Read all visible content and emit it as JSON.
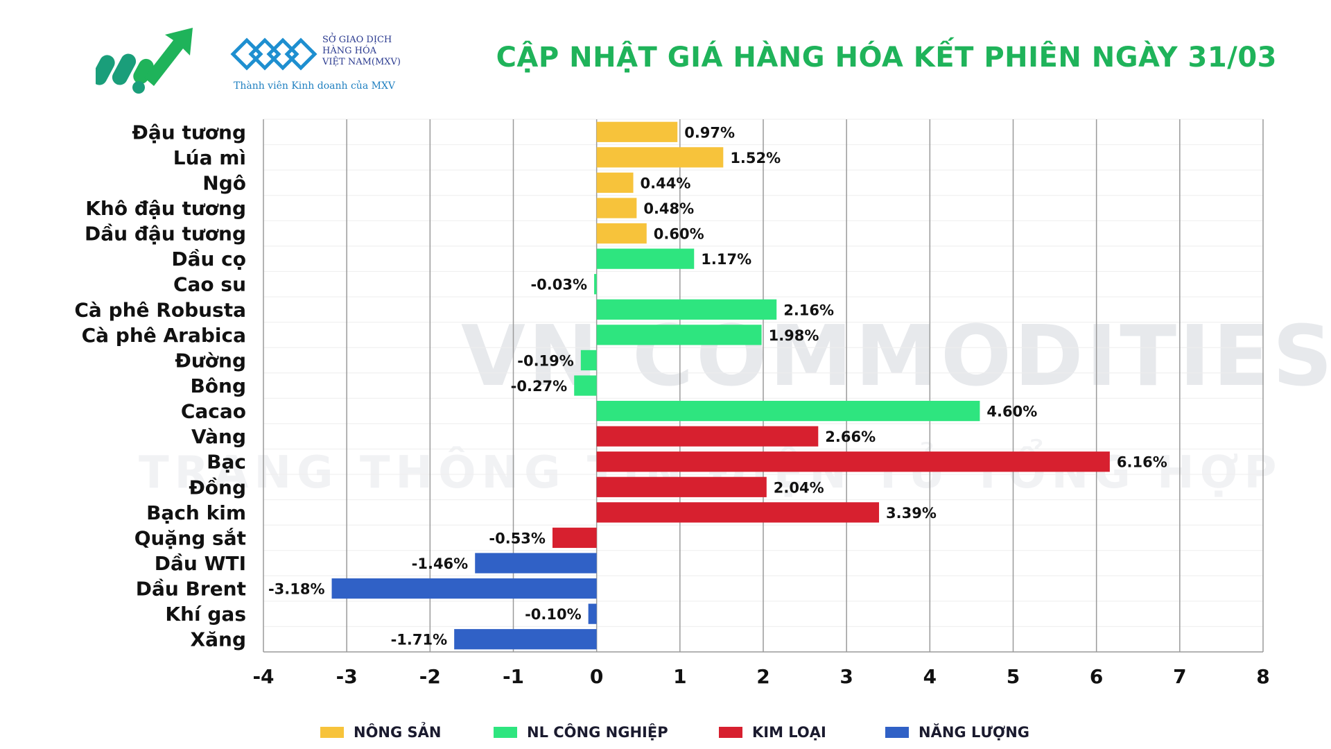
{
  "header": {
    "title": "CẬP NHẬT GIÁ HÀNG HÓA KẾT PHIÊN NGÀY 31/03",
    "mxv_lines": [
      "SỞ GIAO DỊCH",
      "HÀNG HÓA",
      "VIỆT NAM(MXV)"
    ],
    "mxv_member": "Thành viên Kinh doanh của MXV",
    "title_color": "#1fb35a"
  },
  "watermark": {
    "main": "VN COMMODITIES",
    "sub": "TRANG THÔNG TIN ĐIỆN TỬ TỔNG HỢP"
  },
  "colors": {
    "nong_san": "#f7c33b",
    "nl_cong_nghiep": "#2ee57f",
    "kim_loai": "#d7202f",
    "nang_luong": "#3061c6"
  },
  "legend": [
    {
      "key": "nong_san",
      "label": "NÔNG SẢN"
    },
    {
      "key": "nl_cong_nghiep",
      "label": "NL CÔNG NGHIỆP"
    },
    {
      "key": "kim_loai",
      "label": "KIM LOẠI"
    },
    {
      "key": "nang_luong",
      "label": "NĂNG LƯỢNG"
    }
  ],
  "chart_data": {
    "type": "bar",
    "orientation": "horizontal",
    "title": "CẬP NHẬT GIÁ HÀNG HÓA KẾT PHIÊN NGÀY 31/03",
    "xlim": [
      -4,
      8
    ],
    "xticks": [
      -4,
      -3,
      -2,
      -1,
      0,
      1,
      2,
      3,
      4,
      5,
      6,
      7,
      8
    ],
    "grid": "vertical",
    "legend_position": "bottom",
    "categories": [
      "Đậu tương",
      "Lúa mì",
      "Ngô",
      "Khô đậu tương",
      "Dầu đậu tương",
      "Dầu cọ",
      "Cao su",
      "Cà phê Robusta",
      "Cà phê Arabica",
      "Đường",
      "Bông",
      "Cacao",
      "Vàng",
      "Bạc",
      "Đồng",
      "Bạch kim",
      "Quặng sắt",
      "Dầu WTI",
      "Dầu Brent",
      "Khí gas",
      "Xăng"
    ],
    "values": [
      0.97,
      1.52,
      0.44,
      0.48,
      0.6,
      1.17,
      -0.03,
      2.16,
      1.98,
      -0.19,
      -0.27,
      4.6,
      2.66,
      6.16,
      2.04,
      3.39,
      -0.53,
      -1.46,
      -3.18,
      -0.1,
      -1.71
    ],
    "labels": [
      "0.97%",
      "1.52%",
      "0.44%",
      "0.48%",
      "0.60%",
      "1.17%",
      "-0.03%",
      "2.16%",
      "1.98%",
      "-0.19%",
      "-0.27%",
      "4.60%",
      "2.66%",
      "6.16%",
      "2.04%",
      "3.39%",
      "-0.53%",
      "-1.46%",
      "-3.18%",
      "-0.10%",
      "-1.71%"
    ],
    "groups": [
      "nong_san",
      "nong_san",
      "nong_san",
      "nong_san",
      "nong_san",
      "nl_cong_nghiep",
      "nl_cong_nghiep",
      "nl_cong_nghiep",
      "nl_cong_nghiep",
      "nl_cong_nghiep",
      "nl_cong_nghiep",
      "nl_cong_nghiep",
      "kim_loai",
      "kim_loai",
      "kim_loai",
      "kim_loai",
      "kim_loai",
      "nang_luong",
      "nang_luong",
      "nang_luong",
      "nang_luong"
    ]
  }
}
